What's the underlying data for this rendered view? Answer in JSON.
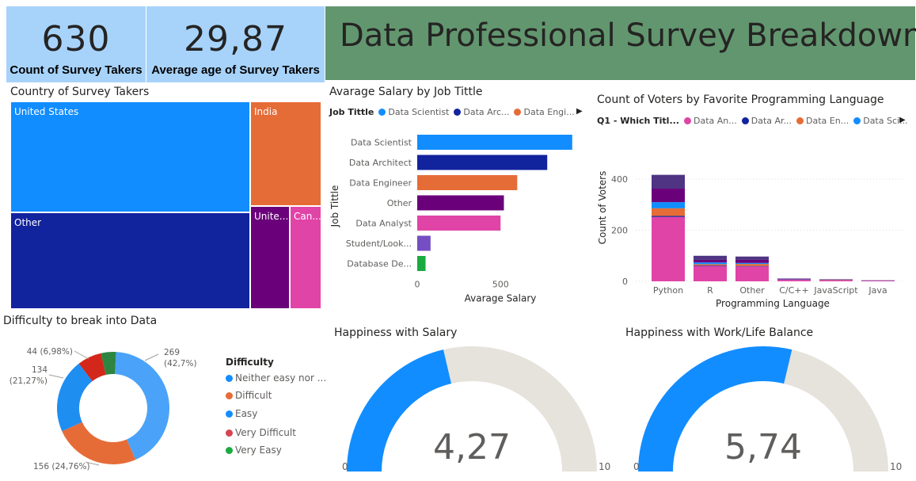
{
  "kpis": [
    {
      "value": "630",
      "label": "Count of Survey Takers"
    },
    {
      "value": "29,87",
      "label": "Average age of Survey Takers"
    }
  ],
  "page_title": "Data Professional Survey Breakdown",
  "colors": {
    "card_bg": "#a7d3fb",
    "title_bg": "#62966f",
    "blue": "#118dff",
    "navy": "#12239e",
    "orange": "#e66c37",
    "purple": "#6b007b",
    "pink": "#e044a7",
    "deep_purple": "#744ec2",
    "green": "#1aab40",
    "red": "#d64550",
    "gauge_bg": "#e6e2dc"
  },
  "treemap": {
    "title": "Country of Survey Takers",
    "cells": [
      "United States",
      "India",
      "Other",
      "Unite...",
      "Can..."
    ]
  },
  "salary_chart": {
    "title": "Avarage Salary by Job Tittle",
    "legend_title": "Job Tittle",
    "legend": [
      "Data Scientist",
      "Data Arc...",
      "Data Engi..."
    ],
    "legend_arrow": "▶",
    "ylabel": "Job Tittle",
    "xlabel": "Avarage Salary",
    "x_ticks": [
      "0",
      "500"
    ]
  },
  "lang_chart": {
    "title": "Count of Voters by Favorite Programming Language",
    "legend_title": "Q1 - Which Titl...",
    "legend": [
      "Data An...",
      "Data Ar...",
      "Data En...",
      "Data Sci..."
    ],
    "legend_arrow": "▶",
    "ylabel": "Count of Voters",
    "xlabel": "Programming Language",
    "y_ticks": [
      "0",
      "200",
      "400"
    ]
  },
  "donut": {
    "title": "Difficulty to break into Data",
    "legend_title": "Difficulty",
    "legend": [
      "Neither easy nor ...",
      "Difficult",
      "Easy",
      "Very Difficult",
      "Very Easy"
    ],
    "labels": [
      {
        "line1": "269",
        "line2": "(42,7%)"
      },
      {
        "line1": "156 (24,76%)",
        "line2": ""
      },
      {
        "line1": "134",
        "line2": "(21,27%)"
      },
      {
        "line1": "44 (6,98%)",
        "line2": ""
      }
    ]
  },
  "gauge_salary": {
    "title": "Happiness with Salary",
    "value_text": "4,27",
    "min": "0",
    "max": "10"
  },
  "gauge_wlb": {
    "title": "Happiness with Work/Life Balance",
    "value_text": "5,74",
    "min": "0",
    "max": "10"
  },
  "chart_data": [
    {
      "type": "bar",
      "title": "Avarage Salary by Job Tittle",
      "orientation": "horizontal",
      "categories": [
        "Data Scientist",
        "Data Architect",
        "Data Engineer",
        "Other",
        "Data Analyst",
        "Student/Look...",
        "Database De..."
      ],
      "values": [
        930,
        780,
        600,
        520,
        500,
        80,
        50
      ],
      "xlabel": "Avarage Salary",
      "ylabel": "Job Tittle",
      "xlim": [
        0,
        950
      ]
    },
    {
      "type": "bar",
      "stacked": true,
      "title": "Count of Voters by Favorite Programming Language",
      "categories": [
        "Python",
        "R",
        "Other",
        "C/C++",
        "JavaScript",
        "Java"
      ],
      "series": [
        {
          "name": "Data An...",
          "values": [
            252,
            60,
            58,
            6,
            4,
            2
          ]
        },
        {
          "name": "Data Ar...",
          "values": [
            4,
            2,
            2,
            0,
            0,
            0
          ]
        },
        {
          "name": "Data En...",
          "values": [
            30,
            5,
            8,
            0,
            1,
            0
          ]
        },
        {
          "name": "Data Sci...",
          "values": [
            24,
            7,
            4,
            1,
            0,
            0
          ]
        },
        {
          "values": [
            53,
            10,
            12,
            2,
            1,
            1
          ]
        },
        {
          "values": [
            54,
            16,
            13,
            2,
            2,
            1
          ]
        }
      ],
      "xlabel": "Programming Language",
      "ylabel": "Count of Voters",
      "ylim": [
        0,
        450
      ]
    },
    {
      "type": "pie",
      "title": "Difficulty to break into Data",
      "categories": [
        "Neither easy nor ...",
        "Difficult",
        "Easy",
        "Very Difficult",
        "Very Easy"
      ],
      "values": [
        269,
        156,
        134,
        44,
        27
      ]
    },
    {
      "type": "gauge",
      "title": "Happiness with Salary",
      "value": 4.27,
      "min": 0,
      "max": 10
    },
    {
      "type": "gauge",
      "title": "Happiness with Work/Life Balance",
      "value": 5.74,
      "min": 0,
      "max": 10
    }
  ]
}
